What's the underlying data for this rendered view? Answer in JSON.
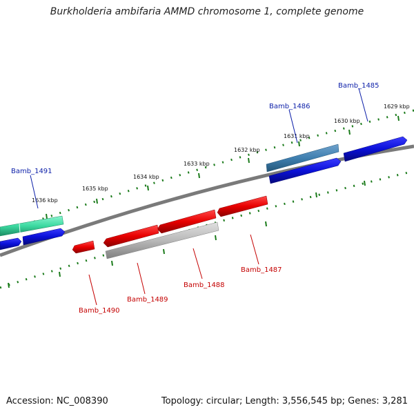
{
  "title": "Burkholderia ambifaria AMMD chromosome 1, complete genome",
  "footer": {
    "accession": "Accession: NC_008390",
    "summary": "Topology: circular; Length: 3,556,545 bp; Genes: 3,281"
  },
  "scale_labels": [
    "1629 kbp",
    "1630 kbp",
    "1631 kbp",
    "1632 kbp",
    "1633 kbp",
    "1634 kbp",
    "1635 kbp",
    "1636 kbp"
  ],
  "gene_labels": {
    "forward": [
      "Bamb_1485",
      "Bamb_1486",
      "Bamb_1491"
    ],
    "reverse": [
      "Bamb_1487",
      "Bamb_1488",
      "Bamb_1489",
      "Bamb_1490"
    ]
  },
  "colors": {
    "forward_gene": "#0a10d8",
    "reverse_gene": "#e80000",
    "rna_gene": "#3cd9a0",
    "highlight_forward": "#3f7fb0",
    "highlight_reverse": "#b9b9b9",
    "backbone": "#808080",
    "tick": "#1a7a1a"
  }
}
